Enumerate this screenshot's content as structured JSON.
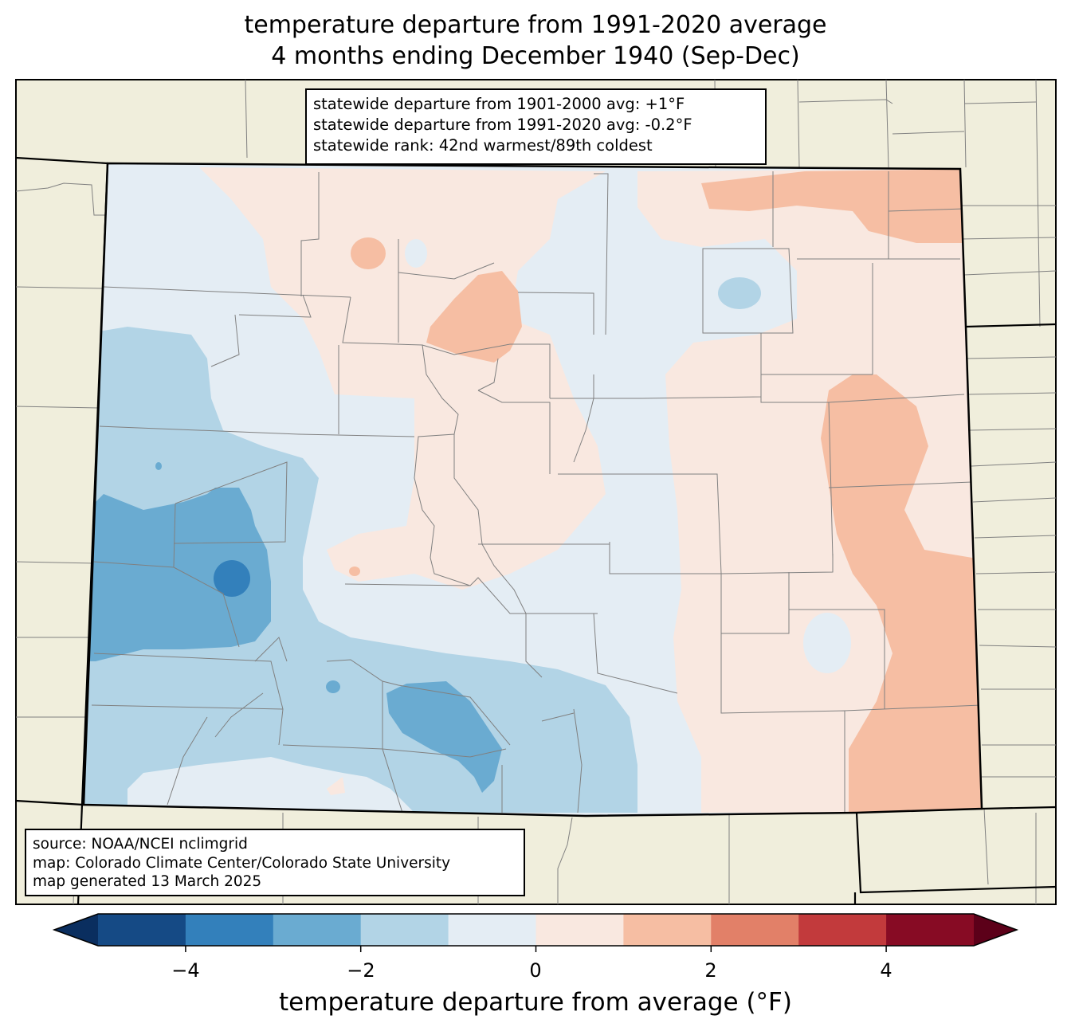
{
  "title_line1": "temperature departure from 1991-2020 average",
  "title_line2": "4 months ending December 1940 (Sep-Dec)",
  "stats": {
    "line1": "statewide departure from 1901-2000 avg: +1°F",
    "line2": "statewide departure from 1991-2020 avg: -0.2°F",
    "line3": "statewide rank: 42nd warmest/89th coldest"
  },
  "source": {
    "line1": "source: NOAA/NCEI nclimgrid",
    "line2": "map: Colorado Climate Center/Colorado State University",
    "line3": "map generated 13 March 2025"
  },
  "colorbar": {
    "label": "temperature departure from average (°F)",
    "ticks": [
      "−4",
      "−2",
      "0",
      "2",
      "4"
    ],
    "bins": [
      {
        "from": -5,
        "to": -4,
        "color": "#154a85"
      },
      {
        "from": -4,
        "to": -3,
        "color": "#3380bb"
      },
      {
        "from": -3,
        "to": -2,
        "color": "#6aabd1"
      },
      {
        "from": -2,
        "to": -1,
        "color": "#b2d4e6"
      },
      {
        "from": -1,
        "to": 0,
        "color": "#e4edf4"
      },
      {
        "from": 0,
        "to": 1,
        "color": "#f9e8e0"
      },
      {
        "from": 1,
        "to": 2,
        "color": "#f6bea3"
      },
      {
        "from": 2,
        "to": 3,
        "color": "#e28068"
      },
      {
        "from": 3,
        "to": 4,
        "color": "#c23a3c"
      },
      {
        "from": 4,
        "to": 5,
        "color": "#870b24"
      }
    ],
    "under_color": "#0a2e5f",
    "over_color": "#5c0019"
  },
  "colors": {
    "land": "#f0eedc",
    "state_border": "#000000",
    "county_border": "#808080"
  }
}
